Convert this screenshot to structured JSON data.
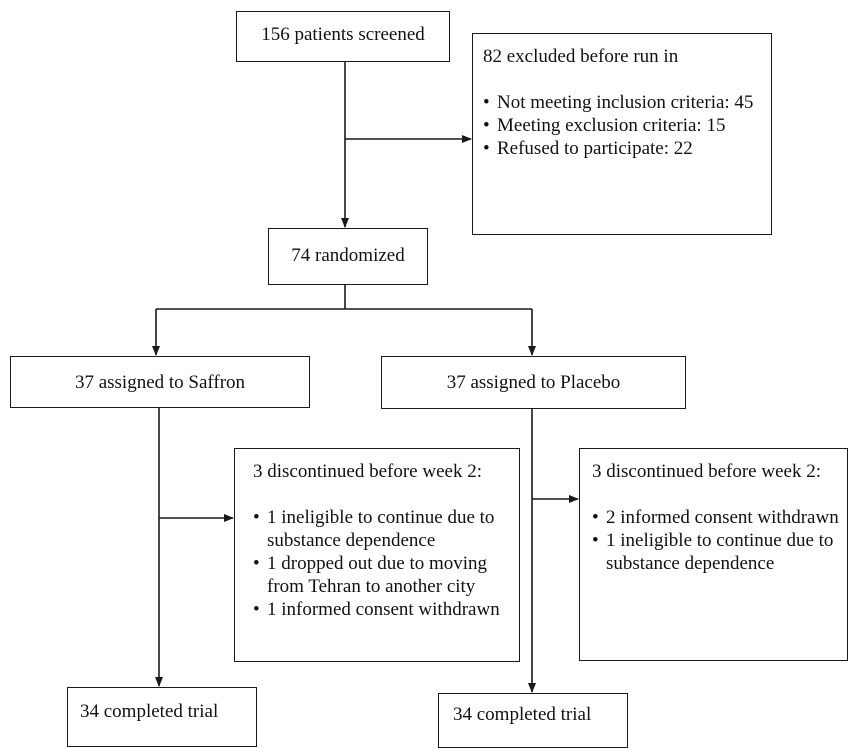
{
  "screened": {
    "label": "156 patients screened"
  },
  "excluded": {
    "title": "82 excluded before run in",
    "items": [
      "Not meeting inclusion criteria: 45",
      "Meeting exclusion criteria: 15",
      "Refused to participate: 22"
    ]
  },
  "randomized": {
    "label": "74 randomized"
  },
  "saffron": {
    "assigned": "37 assigned to Saffron",
    "discontinued": {
      "title": "3 discontinued before week 2:",
      "items": [
        "1 ineligible to continue due to substance dependence",
        "1 dropped out due to moving from Tehran to another city",
        "1 informed consent withdrawn"
      ]
    },
    "completed": "34 completed trial"
  },
  "placebo": {
    "assigned": "37 assigned to Placebo",
    "discontinued": {
      "title": "3 discontinued before week 2:",
      "items": [
        "2 informed consent withdrawn",
        "1 ineligible to continue due to substance dependence"
      ]
    },
    "completed": "34 completed trial"
  },
  "colors": {
    "line": "#1a1a1a",
    "text": "#111111",
    "background": "#ffffff"
  }
}
